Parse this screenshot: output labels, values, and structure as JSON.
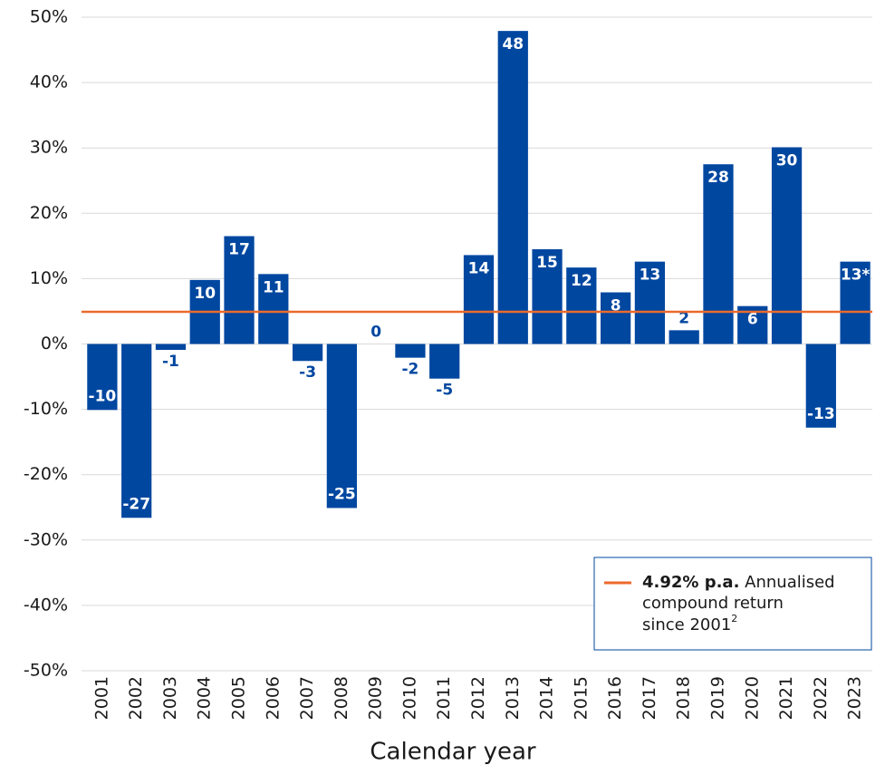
{
  "chart_data": {
    "type": "bar",
    "x_label": "Calendar year",
    "categories": [
      "2001",
      "2002",
      "2003",
      "2004",
      "2005",
      "2006",
      "2007",
      "2008",
      "2009",
      "2010",
      "2011",
      "2012",
      "2013",
      "2014",
      "2015",
      "2016",
      "2017",
      "2018",
      "2019",
      "2020",
      "2021",
      "2022",
      "2023"
    ],
    "values": [
      -10.1,
      -26.6,
      -0.9,
      9.8,
      16.5,
      10.7,
      -2.6,
      -25.1,
      0,
      -2.1,
      -5.3,
      13.6,
      47.9,
      14.5,
      11.7,
      7.9,
      12.6,
      2.1,
      27.5,
      5.8,
      30.1,
      -12.8,
      12.6
    ],
    "value_labels": [
      "-10",
      "-27",
      "-1",
      "10",
      "17",
      "11",
      "-3",
      "-25",
      "0",
      "-2",
      "-5",
      "14",
      "48",
      "15",
      "12",
      "8",
      "13",
      "2",
      "28",
      "6",
      "30",
      "-13",
      "13*"
    ],
    "color": "#0047a0",
    "ylim": [
      -50,
      50
    ],
    "yticks": [
      {
        "value": -50,
        "label": "-50%"
      },
      {
        "value": -40,
        "label": "-40%"
      },
      {
        "value": -30,
        "label": "-30%"
      },
      {
        "value": -20,
        "label": "-20%"
      },
      {
        "value": -10,
        "label": "-10%"
      },
      {
        "value": 0,
        "label": "0%"
      },
      {
        "value": 10,
        "label": "10%"
      },
      {
        "value": 20,
        "label": "20%"
      },
      {
        "value": 30,
        "label": "30%"
      },
      {
        "value": 40,
        "label": "40%"
      },
      {
        "value": 50,
        "label": "50%"
      }
    ],
    "grid": true,
    "reference_line": {
      "value": 4.92,
      "color": "#ec6a2c"
    },
    "legend": {
      "bold": "4.92% p.a.",
      "text": [
        "Annualised",
        "compound return",
        "since 2001"
      ],
      "superscript": "2"
    }
  }
}
